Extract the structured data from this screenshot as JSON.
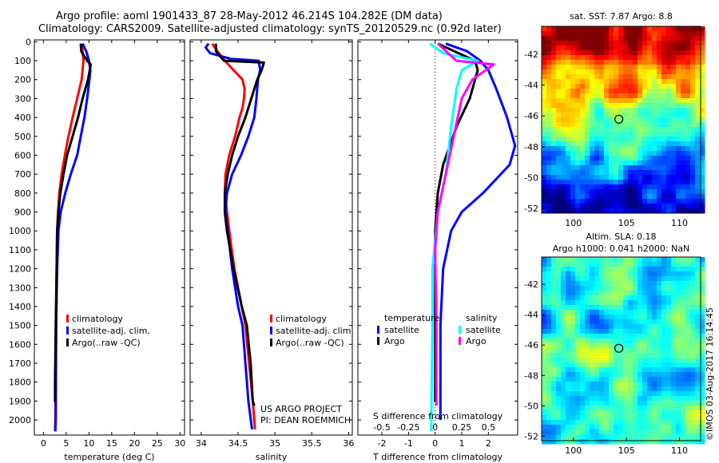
{
  "title": {
    "line1": "Argo profile: aoml 1901433_87 28-May-2012 46.214S 104.282E (DM data)",
    "line2": "Climatology: CARS2009. Satellite-adjusted climatology: synTS_20120529.nc (0.92d later)"
  },
  "colors": {
    "climatology": "#ff0000",
    "satellite": "#0000ff",
    "argo": "#000000",
    "argo_salinity": "#ff00ff",
    "satellite_salinity": "#00ffff"
  },
  "chart_data": [
    {
      "type": "line",
      "id": "temperature",
      "xlabel": "temperature (deg C)",
      "xlim": [
        -2,
        31
      ],
      "ylim": [
        2080,
        -10
      ],
      "xticks": [
        "0",
        "5",
        "10",
        "15",
        "20",
        "25",
        "30"
      ],
      "yticks": [
        "0",
        "100",
        "200",
        "300",
        "400",
        "500",
        "600",
        "700",
        "800",
        "900",
        "1000",
        "1100",
        "1200",
        "1300",
        "1400",
        "1500",
        "1600",
        "1700",
        "1800",
        "1900",
        "2000"
      ],
      "legend": [
        "climatology",
        "satellite-adj. clim.",
        "Argo(..raw -QC)"
      ],
      "series": [
        {
          "name": "climatology",
          "color_key": "climatology",
          "points": [
            [
              8.4,
              10
            ],
            [
              8.6,
              50
            ],
            [
              8.8,
              100
            ],
            [
              8.4,
              200
            ],
            [
              7.4,
              300
            ],
            [
              6.4,
              400
            ],
            [
              5.5,
              500
            ],
            [
              4.7,
              600
            ],
            [
              4.0,
              700
            ],
            [
              3.5,
              800
            ],
            [
              3.2,
              900
            ],
            [
              3.0,
              1000
            ],
            [
              2.9,
              1200
            ],
            [
              2.8,
              1500
            ],
            [
              2.6,
              2000
            ],
            [
              2.55,
              2060
            ]
          ]
        },
        {
          "name": "satellite-adj. clim.",
          "color_key": "satellite",
          "points": [
            [
              8.6,
              10
            ],
            [
              9.4,
              50
            ],
            [
              10.0,
              100
            ],
            [
              10.3,
              150
            ],
            [
              10.1,
              200
            ],
            [
              9.6,
              300
            ],
            [
              9.0,
              400
            ],
            [
              8.2,
              500
            ],
            [
              7.4,
              600
            ],
            [
              6.0,
              700
            ],
            [
              4.8,
              800
            ],
            [
              3.8,
              900
            ],
            [
              3.3,
              1000
            ],
            [
              3.0,
              1200
            ],
            [
              2.8,
              1500
            ],
            [
              2.7,
              2000
            ],
            [
              2.6,
              2060
            ]
          ]
        },
        {
          "name": "Argo(..raw -QC)",
          "color_key": "argo",
          "points": [
            [
              8.2,
              10
            ],
            [
              8.3,
              50
            ],
            [
              9.6,
              100
            ],
            [
              10.4,
              120
            ],
            [
              9.8,
              200
            ],
            [
              8.6,
              300
            ],
            [
              7.6,
              400
            ],
            [
              6.4,
              500
            ],
            [
              5.2,
              600
            ],
            [
              4.4,
              700
            ],
            [
              3.7,
              800
            ],
            [
              3.3,
              900
            ],
            [
              3.0,
              1000
            ],
            [
              2.9,
              1200
            ],
            [
              2.7,
              1500
            ],
            [
              2.55,
              1800
            ],
            [
              2.55,
              1905
            ]
          ]
        }
      ]
    },
    {
      "type": "line",
      "id": "salinity",
      "xlabel": "salinity",
      "xlim": [
        33.85,
        36.05
      ],
      "ylim": [
        2080,
        -10
      ],
      "xticks": [
        "34",
        "34.5",
        "35",
        "35.5",
        "36"
      ],
      "legend": [
        "climatology",
        "satellite-adj. clim.",
        "Argo(..raw -QC)"
      ],
      "annotation": [
        "US ARGO PROJECT",
        "PI: DEAN ROEMMICH"
      ],
      "series": [
        {
          "name": "climatology",
          "color_key": "climatology",
          "points": [
            [
              34.15,
              10
            ],
            [
              34.22,
              50
            ],
            [
              34.32,
              100
            ],
            [
              34.44,
              150
            ],
            [
              34.56,
              200
            ],
            [
              34.59,
              250
            ],
            [
              34.58,
              300
            ],
            [
              34.56,
              350
            ],
            [
              34.52,
              400
            ],
            [
              34.46,
              500
            ],
            [
              34.38,
              600
            ],
            [
              34.33,
              700
            ],
            [
              34.32,
              800
            ],
            [
              34.35,
              900
            ],
            [
              34.38,
              1000
            ],
            [
              34.45,
              1200
            ],
            [
              34.55,
              1400
            ],
            [
              34.6,
              1500
            ],
            [
              34.65,
              1700
            ],
            [
              34.7,
              1900
            ],
            [
              34.73,
              2050
            ]
          ]
        },
        {
          "name": "satellite-adj. clim.",
          "color_key": "satellite",
          "points": [
            [
              34.1,
              10
            ],
            [
              34.06,
              30
            ],
            [
              34.12,
              60
            ],
            [
              34.4,
              90
            ],
            [
              34.78,
              100
            ],
            [
              34.8,
              150
            ],
            [
              34.77,
              200
            ],
            [
              34.75,
              300
            ],
            [
              34.72,
              400
            ],
            [
              34.64,
              500
            ],
            [
              34.54,
              600
            ],
            [
              34.42,
              700
            ],
            [
              34.35,
              800
            ],
            [
              34.33,
              900
            ],
            [
              34.36,
              1000
            ],
            [
              34.42,
              1200
            ],
            [
              34.5,
              1400
            ],
            [
              34.56,
              1500
            ],
            [
              34.6,
              1700
            ],
            [
              34.64,
              1900
            ],
            [
              34.69,
              2050
            ]
          ]
        },
        {
          "name": "Argo(..raw -QC)",
          "color_key": "argo",
          "points": [
            [
              34.2,
              10
            ],
            [
              34.2,
              50
            ],
            [
              34.31,
              100
            ],
            [
              34.85,
              110
            ],
            [
              34.82,
              150
            ],
            [
              34.76,
              200
            ],
            [
              34.68,
              300
            ],
            [
              34.6,
              400
            ],
            [
              34.5,
              500
            ],
            [
              34.42,
              600
            ],
            [
              34.36,
              700
            ],
            [
              34.32,
              800
            ],
            [
              34.32,
              900
            ],
            [
              34.35,
              1000
            ],
            [
              34.44,
              1200
            ],
            [
              34.55,
              1400
            ],
            [
              34.62,
              1500
            ],
            [
              34.67,
              1700
            ],
            [
              34.7,
              1900
            ],
            [
              34.72,
              1925
            ]
          ]
        }
      ]
    },
    {
      "type": "line",
      "id": "difference",
      "xlabel": "T difference from climatology",
      "xlim": [
        -2.9,
        3.1
      ],
      "ylim": [
        2080,
        -10
      ],
      "xticks": [
        "-2",
        "-1",
        "0",
        "1",
        "2"
      ],
      "top_scale_label": "S difference from climatology",
      "top_scale_ticks": [
        "-0.5",
        "-0.25",
        "0",
        "0.25",
        "0.5"
      ],
      "legend": {
        "temperature_header": "temperature",
        "salinity_header": "salinity",
        "entries": [
          "satellite",
          "Argo",
          "satellite",
          "Argo"
        ]
      },
      "series": [
        {
          "name": "temperature satellite",
          "color_key": "satellite",
          "points": [
            [
              0.4,
              10
            ],
            [
              1.2,
              50
            ],
            [
              1.7,
              100
            ],
            [
              2.0,
              150
            ],
            [
              2.3,
              250
            ],
            [
              2.7,
              400
            ],
            [
              3.0,
              550
            ],
            [
              2.8,
              650
            ],
            [
              1.8,
              800
            ],
            [
              1.0,
              900
            ],
            [
              0.6,
              1000
            ],
            [
              0.3,
              1200
            ],
            [
              0.2,
              1500
            ],
            [
              0.2,
              2000
            ]
          ]
        },
        {
          "name": "temperature Argo",
          "color_key": "argo",
          "points": [
            [
              0.1,
              10
            ],
            [
              1.5,
              100
            ],
            [
              1.6,
              150
            ],
            [
              1.3,
              300
            ],
            [
              0.8,
              450
            ],
            [
              0.3,
              650
            ],
            [
              0.1,
              800
            ],
            [
              0.0,
              1000
            ],
            [
              0.0,
              1500
            ],
            [
              0.0,
              1905
            ]
          ]
        },
        {
          "name": "salinity satellite",
          "color_key": "satellite_salinity",
          "points": [
            [
              -0.2,
              10
            ],
            [
              0.3,
              60
            ],
            [
              1.6,
              100
            ],
            [
              1.0,
              150
            ],
            [
              0.8,
              250
            ],
            [
              0.6,
              450
            ],
            [
              0.4,
              700
            ],
            [
              0.1,
              900
            ],
            [
              -0.1,
              1200
            ],
            [
              -0.1,
              1500
            ],
            [
              -0.15,
              2060
            ]
          ]
        },
        {
          "name": "salinity Argo",
          "color_key": "argo_salinity",
          "points": [
            [
              0.1,
              10
            ],
            [
              0.8,
              100
            ],
            [
              2.2,
              120
            ],
            [
              1.4,
              200
            ],
            [
              1.0,
              300
            ],
            [
              0.7,
              500
            ],
            [
              0.4,
              700
            ],
            [
              0.1,
              900
            ],
            [
              0.0,
              1100
            ],
            [
              0.05,
              1500
            ],
            [
              0.05,
              1925
            ]
          ]
        }
      ]
    },
    {
      "type": "heatmap",
      "id": "sst_map",
      "title": "sat. SST: 7.87 Argo: 8.8",
      "xlim": [
        97,
        112
      ],
      "ylim": [
        -52.3,
        -40.2
      ],
      "xticks": [
        "100",
        "105",
        "110"
      ],
      "yticks": [
        "-42",
        "-44",
        "-46",
        "-48",
        "-50",
        "-52"
      ],
      "marker": [
        104.282,
        -46.214
      ]
    },
    {
      "type": "heatmap",
      "id": "sla_map",
      "title_line1": "Altim. SLA: 0.18",
      "title_line2": "Argo h1000: 0.041 h2000: NaN",
      "xlim": [
        97,
        112
      ],
      "ylim": [
        -52.3,
        -40.2
      ],
      "xticks": [
        "100",
        "105",
        "110"
      ],
      "yticks": [
        "-42",
        "-44",
        "-46",
        "-48",
        "-50",
        "-52"
      ],
      "marker": [
        104.282,
        -46.214
      ]
    }
  ],
  "footer": {
    "stamp": "©IMOS 03-Aug-2017 16:14:45"
  }
}
